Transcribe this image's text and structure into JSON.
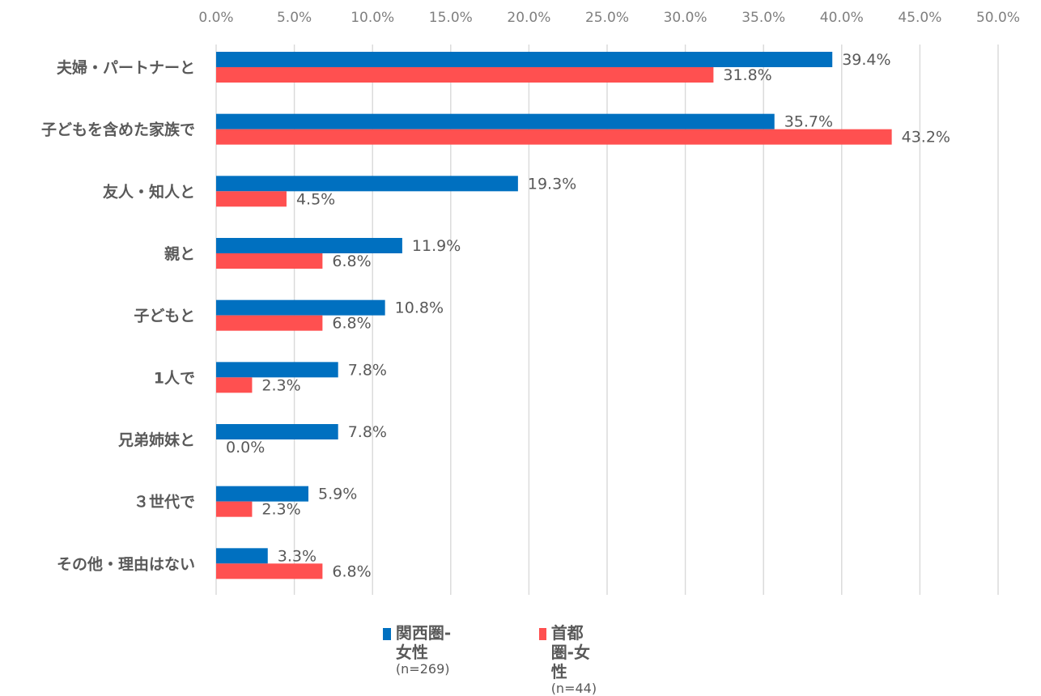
{
  "chart_data": {
    "type": "bar",
    "orientation": "horizontal",
    "categories": [
      "夫婦・パートナーと",
      "子どもを含めた家族で",
      "友人・知人と",
      "親と",
      "子どもと",
      "1人で",
      "兄弟姉妹と",
      "３世代で",
      "その他・理由はない"
    ],
    "series": [
      {
        "name": "関西圏-女性",
        "n_label": "(n=269)",
        "color": "#0070c0",
        "values": [
          39.4,
          35.7,
          19.3,
          11.9,
          10.8,
          7.8,
          7.8,
          5.9,
          3.3
        ],
        "labels": [
          "39.4%",
          "35.7%",
          "19.3%",
          "11.9%",
          "10.8%",
          "7.8%",
          "7.8%",
          "5.9%",
          "3.3%"
        ]
      },
      {
        "name": "首都圏-女性",
        "n_label": "(n=44)",
        "color": "#ff5050",
        "values": [
          31.8,
          43.2,
          4.5,
          6.8,
          6.8,
          2.3,
          0.0,
          2.3,
          6.8
        ],
        "labels": [
          "31.8%",
          "43.2%",
          "4.5%",
          "6.8%",
          "6.8%",
          "2.3%",
          "0.0%",
          "2.3%",
          "6.8%"
        ]
      }
    ],
    "xlim": [
      0,
      50
    ],
    "x_ticks": [
      "0.0%",
      "5.0%",
      "10.0%",
      "15.0%",
      "20.0%",
      "25.0%",
      "30.0%",
      "35.0%",
      "40.0%",
      "45.0%",
      "50.0%"
    ],
    "x_axis_position": "top",
    "grid": "vertical",
    "legend": "bottom-center"
  }
}
